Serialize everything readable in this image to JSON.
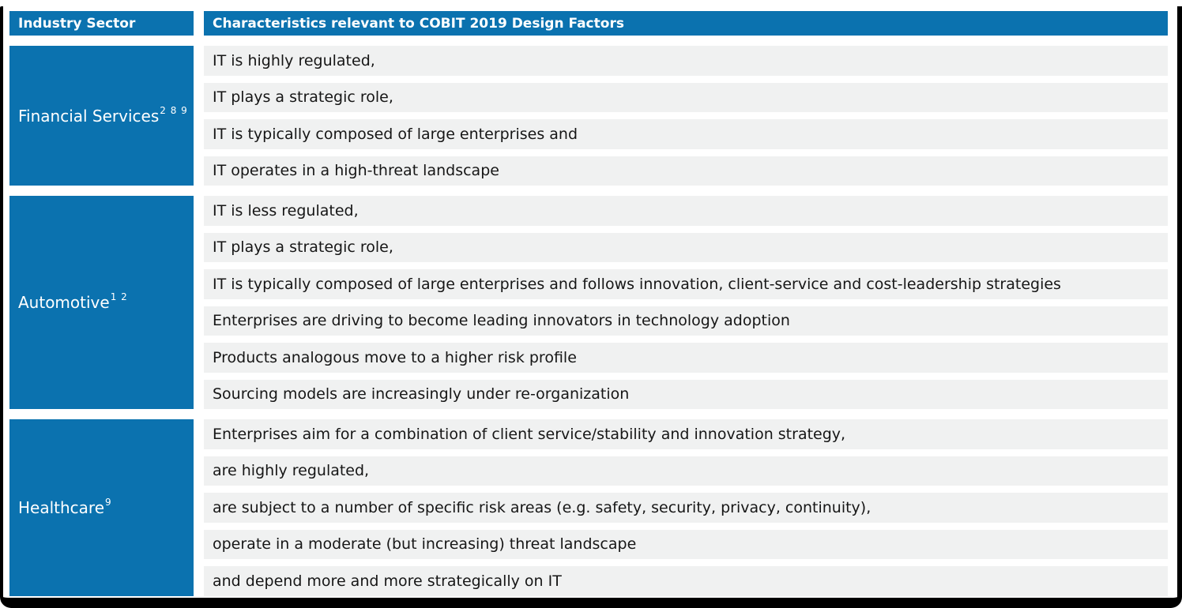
{
  "table": {
    "columns": {
      "sector": "Industry Sector",
      "characteristics": "Characteristics relevant to COBIT 2019 Design Factors"
    },
    "colors": {
      "brand_blue": "#0b72af",
      "row_gray": "#f0f1f1",
      "frame_black": "#000000"
    },
    "sections": [
      {
        "sector": "Financial Services",
        "superscript": "2 8 9",
        "characteristics": [
          "IT is highly regulated,",
          "IT plays a strategic role,",
          "IT is typically composed of large enterprises and",
          "IT operates in a high-threat landscape"
        ]
      },
      {
        "sector": "Automotive",
        "superscript": "1 2",
        "characteristics": [
          "IT is less regulated,",
          "IT plays a strategic role,",
          "IT is typically composed of large enterprises and follows innovation, client-service and cost-leadership strategies",
          "Enterprises are driving to become leading innovators in technology adoption",
          "Products analogous move to a higher risk profile",
          "Sourcing models are increasingly under re-organization"
        ]
      },
      {
        "sector": "Healthcare",
        "superscript": "9",
        "characteristics": [
          "Enterprises aim for a combination of client service/stability and innovation strategy,",
          "are highly regulated,",
          "are subject to a number of specific risk areas (e.g. safety, security, privacy, continuity),",
          "operate in a moderate (but increasing) threat landscape",
          "and depend more and more strategically on IT"
        ]
      }
    ]
  }
}
